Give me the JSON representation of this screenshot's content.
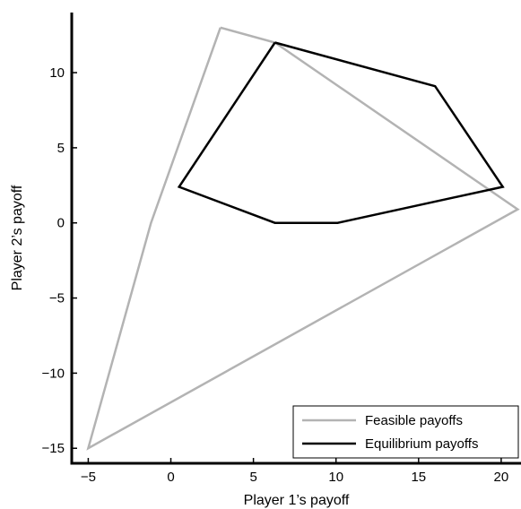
{
  "chart_data": {
    "type": "line",
    "title": "",
    "xlabel": "Player 1’s payoff",
    "ylabel": "Player 2’s payoff",
    "xlim": [
      -6,
      21.2
    ],
    "ylim": [
      -16,
      14
    ],
    "xticks": [
      -5,
      0,
      5,
      10,
      15,
      20
    ],
    "yticks": [
      -15,
      -10,
      -5,
      0,
      5,
      10
    ],
    "grid": false,
    "legend_position": "bottom-right",
    "series": [
      {
        "name": "Feasible payoffs",
        "color": "#b3b3b3",
        "closed": true,
        "x": [
          3,
          6.3,
          21,
          -5,
          -1.2,
          3
        ],
        "y": [
          13,
          12,
          0.9,
          -15,
          0,
          13
        ]
      },
      {
        "name": "Equilibrium payoffs",
        "color": "#000000",
        "closed": true,
        "x": [
          6.3,
          16,
          20.1,
          10.1,
          6.3,
          0.5,
          6.3
        ],
        "y": [
          12,
          9.1,
          2.4,
          0,
          0,
          2.4,
          12
        ]
      }
    ]
  }
}
